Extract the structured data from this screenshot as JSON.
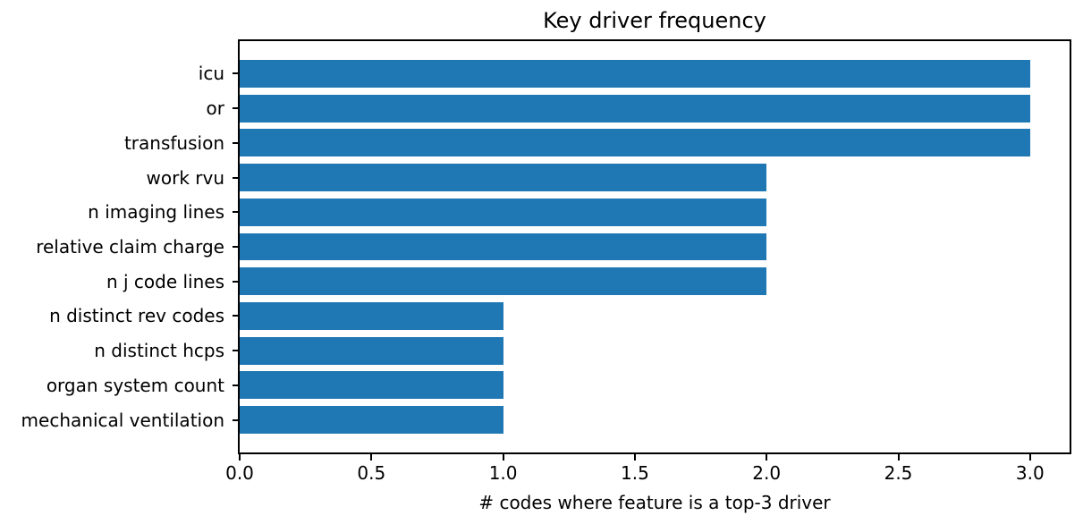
{
  "chart_data": {
    "type": "bar",
    "orientation": "horizontal",
    "title": "Key driver frequency",
    "xlabel": "# codes where feature is a top-3 driver",
    "ylabel": "",
    "categories": [
      "icu",
      "or",
      "transfusion",
      "work rvu",
      "n imaging lines",
      "relative claim charge",
      "n j code lines",
      "n distinct rev codes",
      "n distinct hcps",
      "organ system count",
      "mechanical ventilation"
    ],
    "values": [
      3,
      3,
      3,
      2,
      2,
      2,
      2,
      1,
      1,
      1,
      1
    ],
    "x_tick_labels": [
      "0.0",
      "0.5",
      "1.0",
      "1.5",
      "2.0",
      "2.5",
      "3.0"
    ],
    "x_tick_values": [
      0,
      0.5,
      1,
      1.5,
      2,
      2.5,
      3
    ],
    "xlim": [
      0,
      3.15
    ],
    "bar_color": "#1f77b4",
    "text_color": "#000000",
    "axis_color": "#000000",
    "grid": false,
    "legend_position": null
  }
}
